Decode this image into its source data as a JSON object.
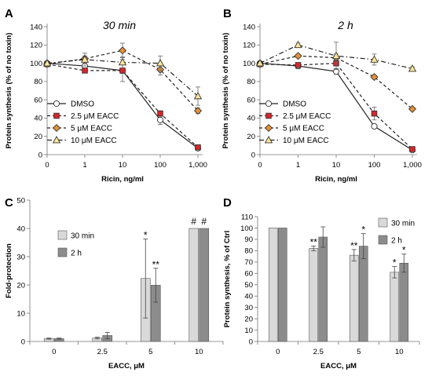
{
  "chart_data": [
    {
      "panel": "A",
      "type": "line",
      "title": "30 min",
      "xlabel": "Ricin, ng/ml",
      "ylabel": "Protein synthesis (% of no toxin)",
      "x": [
        "0",
        "1",
        "10",
        "100",
        "1,000"
      ],
      "ylim": [
        0,
        140
      ],
      "yticks": [
        "0",
        "20",
        "40",
        "60",
        "80",
        "100",
        "120",
        "140"
      ],
      "legend_position": "bottom-left",
      "series": [
        {
          "name": "DMSO",
          "style": "solid",
          "marker": "circle",
          "color": "#333333",
          "fill": "#ffffff",
          "values": [
            100,
            97,
            92,
            38,
            7
          ],
          "errors": [
            0,
            3,
            3,
            5,
            1
          ]
        },
        {
          "name": "2.5 μM EACC",
          "style": "dashed",
          "marker": "square",
          "color": "#333333",
          "fill": "#d9262a",
          "values": [
            99,
            92,
            92,
            45,
            8
          ],
          "errors": [
            0,
            2,
            12,
            3,
            1
          ]
        },
        {
          "name": "5 μM EACC",
          "style": "dashed",
          "marker": "diamond",
          "color": "#333333",
          "fill": "#e69138",
          "values": [
            99,
            105,
            114,
            93,
            48
          ],
          "errors": [
            0,
            3,
            8,
            6,
            3
          ]
        },
        {
          "name": "10 μM EACC",
          "style": "dashdot",
          "marker": "triangle",
          "color": "#333333",
          "fill": "#ffe79a",
          "values": [
            100,
            104,
            101,
            100,
            64
          ],
          "errors": [
            0,
            7,
            6,
            8,
            10
          ]
        }
      ]
    },
    {
      "panel": "B",
      "type": "line",
      "title": "2 h",
      "xlabel": "Ricin, ng/ml",
      "ylabel": "Protein synthesis (% of no toxin)",
      "x": [
        "0",
        "1",
        "10",
        "100",
        "1,000"
      ],
      "ylim": [
        0,
        140
      ],
      "yticks": [
        "0",
        "20",
        "40",
        "60",
        "80",
        "100",
        "120",
        "140"
      ],
      "legend_position": "bottom-left",
      "series": [
        {
          "name": "DMSO",
          "style": "solid",
          "marker": "circle",
          "color": "#333333",
          "fill": "#ffffff",
          "values": [
            100,
            97,
            91,
            31,
            5
          ],
          "errors": [
            0,
            3,
            3,
            2,
            1
          ]
        },
        {
          "name": "2.5 μM EACC",
          "style": "dashed",
          "marker": "square",
          "color": "#333333",
          "fill": "#d9262a",
          "values": [
            99,
            98,
            100,
            45,
            6
          ],
          "errors": [
            0,
            2,
            3,
            7,
            1
          ]
        },
        {
          "name": "5 μM EACC",
          "style": "dashed",
          "marker": "diamond",
          "color": "#333333",
          "fill": "#e69138",
          "values": [
            99,
            108,
            106,
            85,
            50
          ],
          "errors": [
            0,
            2,
            4,
            2,
            2
          ]
        },
        {
          "name": "10 μM EACC",
          "style": "dashdot",
          "marker": "triangle",
          "color": "#333333",
          "fill": "#ffe79a",
          "values": [
            100,
            120,
            108,
            104,
            94
          ],
          "errors": [
            0,
            2,
            15,
            6,
            2
          ]
        }
      ]
    },
    {
      "panel": "C",
      "type": "bar",
      "xlabel": "EACC, μM",
      "ylabel": "Fold-protection",
      "categories": [
        "0",
        "2.5",
        "5",
        "10"
      ],
      "ylim": [
        0,
        50
      ],
      "yticks": [
        "0",
        "10",
        "20",
        "30",
        "40",
        "50"
      ],
      "legend_position": "top-left",
      "series": [
        {
          "name": "30 min",
          "color": "#d9d9d9",
          "values": [
            1,
            1.2,
            22.3,
            40
          ],
          "errors": [
            0.2,
            0.3,
            14,
            0
          ],
          "annotations": [
            "",
            "",
            "*",
            "#"
          ]
        },
        {
          "name": "2 h",
          "color": "#8c8c8c",
          "values": [
            1,
            2.1,
            19.9,
            40
          ],
          "errors": [
            0.2,
            1.1,
            6,
            0
          ],
          "annotations": [
            "",
            "",
            "**",
            "#"
          ]
        }
      ]
    },
    {
      "panel": "D",
      "type": "bar",
      "xlabel": "EACC, μM",
      "ylabel": "Protein synthesis, % of Ctrl",
      "categories": [
        "0",
        "2.5",
        "5",
        "10"
      ],
      "ylim": [
        0,
        110
      ],
      "yticks": [
        "0",
        "10",
        "20",
        "30",
        "40",
        "50",
        "60",
        "70",
        "80",
        "90",
        "100",
        "110"
      ],
      "legend_position": "top-right",
      "series": [
        {
          "name": "30 min",
          "color": "#d9d9d9",
          "values": [
            100,
            82,
            76,
            61
          ],
          "errors": [
            0,
            2,
            5,
            5
          ],
          "annotations": [
            "",
            "**",
            "**",
            "*"
          ]
        },
        {
          "name": "2 h",
          "color": "#8c8c8c",
          "values": [
            100,
            92,
            84,
            69
          ],
          "errors": [
            0,
            9,
            11,
            8
          ],
          "annotations": [
            "",
            "",
            "*",
            "*"
          ]
        }
      ]
    }
  ]
}
